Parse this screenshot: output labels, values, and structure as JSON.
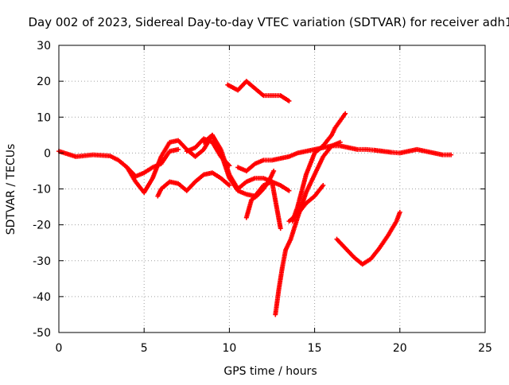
{
  "chart_data": {
    "type": "scatter",
    "title": "Day 002 of 2023, Sidereal Day-to-day VTEC variation (SDTVAR) for receiver adh1",
    "xlabel": "GPS time / hours",
    "ylabel": "SDTVAR / TECUs",
    "xlim": [
      0,
      25
    ],
    "ylim": [
      -50,
      30
    ],
    "x_ticks": [
      0,
      5,
      10,
      15,
      20,
      25
    ],
    "y_ticks": [
      -50,
      -40,
      -30,
      -20,
      -10,
      0,
      10,
      20,
      30
    ],
    "x_tick_labels": [
      "0",
      "5",
      "10",
      "15",
      "20",
      "25"
    ],
    "y_tick_labels": [
      "-50",
      "-40",
      "-30",
      "-20",
      "-10",
      "0",
      "10",
      "20",
      "30"
    ],
    "grid": true,
    "marker": "plus",
    "color": "#ff0000",
    "series": [
      {
        "x": [
          0,
          1,
          2,
          3,
          3.5,
          4,
          4.5,
          5,
          5.5,
          6,
          6.5,
          7
        ],
        "y": [
          0.5,
          -1,
          -0.5,
          -0.8,
          -2,
          -4,
          -6.5,
          -5.5,
          -4,
          -3,
          0.5,
          1
        ]
      },
      {
        "x": [
          7.5,
          8,
          8.5,
          9,
          9.5,
          10
        ],
        "y": [
          0.5,
          1.5,
          4,
          3,
          -1,
          -3.5
        ]
      },
      {
        "x": [
          10.5,
          11,
          11.5,
          12,
          12.5,
          13,
          13.5,
          14,
          14.5,
          15,
          15.5,
          16,
          16.5,
          17,
          17.5,
          18,
          18.5,
          19,
          19.5,
          20,
          20.5,
          21,
          21.5,
          22,
          22.5,
          23
        ],
        "y": [
          -4,
          -5,
          -3,
          -2,
          -2,
          -1.5,
          -1,
          0,
          0.5,
          1,
          1.5,
          2,
          2,
          1.5,
          1,
          1,
          0.8,
          0.5,
          0.2,
          0,
          0.5,
          1,
          0.5,
          0,
          -0.5,
          -0.5
        ]
      },
      {
        "x": [
          4,
          4.5,
          5,
          5.5,
          6,
          6.5,
          7,
          7.5,
          8,
          8.5,
          9,
          9.5,
          10,
          10.5,
          11,
          11.5,
          12,
          12.5,
          13
        ],
        "y": [
          -4,
          -8,
          -11,
          -7,
          -1,
          3,
          3.5,
          1,
          -1,
          1,
          5,
          1,
          -6,
          -10,
          -8,
          -7,
          -7,
          -8,
          -21
        ]
      },
      {
        "x": [
          5.8,
          6,
          6.5,
          7,
          7.5,
          8,
          8.5,
          9,
          9.5,
          10
        ],
        "y": [
          -12,
          -10,
          -8,
          -8.5,
          -10.5,
          -8,
          -6,
          -5.5,
          -7,
          -9
        ]
      },
      {
        "x": [
          8.5,
          9,
          9.5,
          10,
          10.5,
          11,
          11.5,
          12,
          12.5,
          13,
          13.5
        ],
        "y": [
          3,
          5,
          0,
          -7,
          -10.5,
          -11.5,
          -12,
          -9,
          -8,
          -9,
          -10.5
        ]
      },
      {
        "x": [
          11,
          11.3,
          11.6,
          12,
          12.3,
          12.6
        ],
        "y": [
          -18,
          -13,
          -12,
          -10,
          -8,
          -5
        ]
      },
      {
        "x": [
          9.9,
          10.5,
          11,
          11.5,
          12,
          12.5,
          13,
          13.5
        ],
        "y": [
          19,
          17.5,
          20,
          18,
          16,
          16,
          16,
          14.5
        ]
      },
      {
        "x": [
          12.7,
          12.9,
          13.1,
          13.3,
          13.6,
          14,
          14.5,
          15,
          15.5,
          16,
          16.5
        ],
        "y": [
          -45,
          -38,
          -32,
          -27,
          -24,
          -18,
          -11,
          -6,
          -1,
          2,
          3
        ]
      },
      {
        "x": [
          13.7,
          14,
          14.5,
          15,
          15.5,
          16,
          16.2,
          16.5,
          16.8
        ],
        "y": [
          -19,
          -15,
          -6,
          0,
          2,
          5,
          7,
          9,
          11
        ]
      },
      {
        "x": [
          13.5,
          14,
          14.5,
          15,
          15.5
        ],
        "y": [
          -19,
          -17,
          -14,
          -12,
          -9
        ]
      },
      {
        "x": [
          16.3,
          16.8,
          17.3,
          17.8,
          18.3,
          18.8,
          19.3,
          19.8,
          20
        ],
        "y": [
          -24,
          -26.5,
          -29,
          -31,
          -29.5,
          -26.5,
          -23,
          -19,
          -16.5
        ]
      }
    ]
  }
}
